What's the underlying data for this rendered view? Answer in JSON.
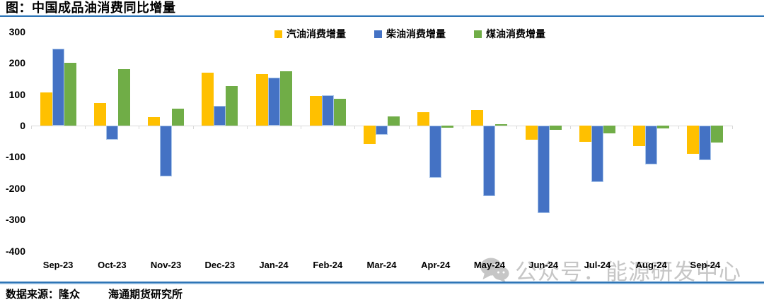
{
  "title": "图：中国成品油消费同比增量",
  "footer": {
    "source_label": "数据来源：隆众",
    "institute": "海通期货研究所"
  },
  "watermark": {
    "icon": "wechat-icon",
    "text": "公众号：能源研发中心"
  },
  "colors": {
    "gasoline": "#FFC000",
    "diesel": "#4472C4",
    "diesel_border": "#A9C5EA",
    "kerosene": "#70AD47",
    "rule_dark_blue": "#2E75B6",
    "rule_light_blue": "#BDD7EE",
    "axis_gray": "#D9D9D9",
    "watermark_gray": "#C6C6C6"
  },
  "chart_data": {
    "type": "bar",
    "title": "图：中国成品油消费同比增量",
    "categories": [
      "Sep-23",
      "Oct-23",
      "Nov-23",
      "Dec-23",
      "Jan-24",
      "Feb-24",
      "Mar-24",
      "Apr-24",
      "May-24",
      "Jun-24",
      "Jul-24",
      "Aug-24",
      "Sep-24"
    ],
    "series": [
      {
        "name": "汽油消费增量",
        "color": "#FFC000",
        "values": [
          105,
          73,
          28,
          168,
          165,
          95,
          -58,
          42,
          50,
          -46,
          -52,
          -65,
          -90
        ]
      },
      {
        "name": "柴油消费增量",
        "color": "#4472C4",
        "border": "#A9C5EA",
        "values": [
          245,
          -45,
          -163,
          64,
          152,
          96,
          -30,
          -167,
          -224,
          -278,
          -180,
          -123,
          -110
        ]
      },
      {
        "name": "煤油消费增量",
        "color": "#70AD47",
        "values": [
          200,
          180,
          53,
          125,
          174,
          86,
          30,
          -6,
          4,
          -13,
          -25,
          -9,
          -55
        ]
      }
    ],
    "xlabel": "",
    "ylabel": "",
    "ylim": [
      -400,
      300
    ],
    "yticks": [
      300,
      200,
      100,
      0,
      -100,
      -200,
      -300,
      -400
    ],
    "grid": false,
    "legend_position": "top"
  }
}
